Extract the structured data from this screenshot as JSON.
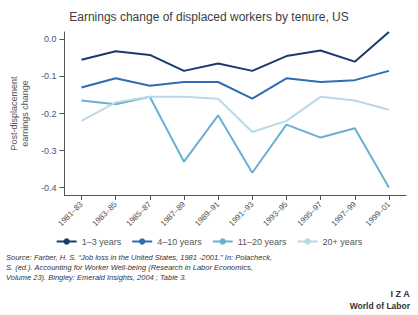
{
  "chart_data": {
    "type": "line",
    "title": "Earnings change of displaced workers by tenure, US",
    "y_label": "Post-displacement\nearnings change",
    "categories": [
      "1981–83",
      "1983–85",
      "1985–87",
      "1987–89",
      "1989–91",
      "1991–93",
      "1993–95",
      "1995–97",
      "1997–99",
      "1999–01"
    ],
    "series": [
      {
        "name": "1–3 years",
        "color": "#1a3a6b",
        "values": [
          -0.055,
          -0.032,
          -0.042,
          -0.085,
          -0.065,
          -0.085,
          -0.045,
          -0.03,
          -0.06,
          0.02
        ]
      },
      {
        "name": "4–10 years",
        "color": "#2e6db4",
        "values": [
          -0.13,
          -0.105,
          -0.125,
          -0.115,
          -0.115,
          -0.16,
          -0.105,
          -0.115,
          -0.11,
          -0.085
        ]
      },
      {
        "name": "11–20 years",
        "color": "#6aafd6",
        "values": [
          -0.165,
          -0.175,
          -0.155,
          -0.33,
          -0.205,
          -0.36,
          -0.23,
          -0.265,
          -0.24,
          -0.4
        ]
      },
      {
        "name": "20+ years",
        "color": "#b8d9ea",
        "values": [
          -0.22,
          -0.17,
          -0.155,
          -0.155,
          -0.16,
          -0.25,
          -0.22,
          -0.155,
          -0.165,
          -0.19
        ]
      }
    ],
    "ylim": [
      -0.42,
      0.02
    ],
    "yticks": [
      {
        "value": 0,
        "label": "0.0"
      },
      -0.1,
      -0.2,
      -0.3,
      -0.4
    ],
    "grid": false,
    "legend": "bottom",
    "annotations": [
      "Source: Farber, H. S. “Job loss in the United States, 1981 -2001.” In: Polacheck,\nS. (ed.). Accounting for Worker Well-being (Research in Labor Economics,\nVolume 23). Bingley: Emerald Insights, 2004 ; Table 3.",
      "I Z A",
      "World of Labor"
    ]
  }
}
